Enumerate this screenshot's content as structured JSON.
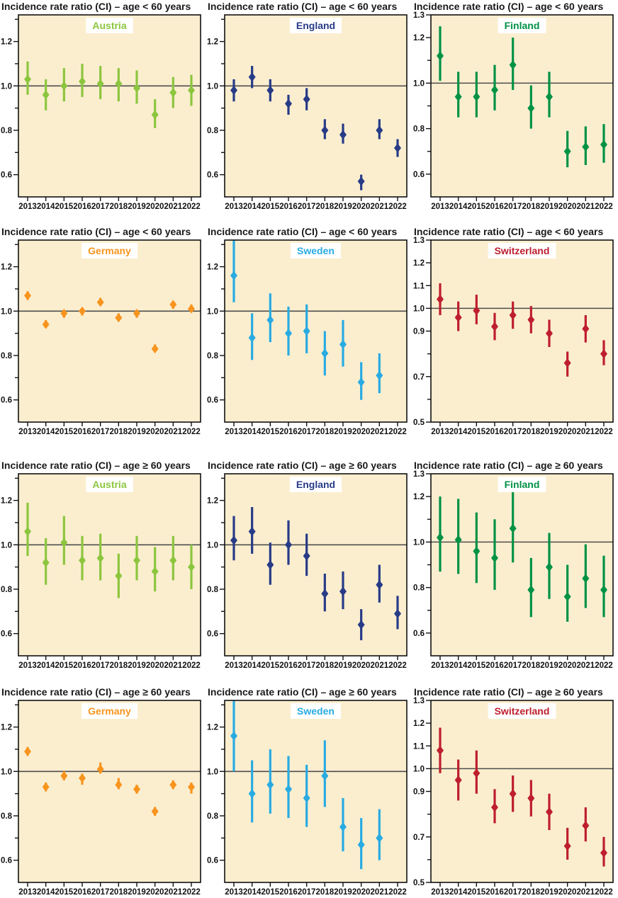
{
  "page": {
    "background": "#ffffff"
  },
  "chart_data": {
    "type": "scatter",
    "description": "Grid of 12 error-bar panels: incidence rate ratio with confidence intervals by year, per country and age group",
    "x_years": [
      2013,
      2014,
      2015,
      2016,
      2017,
      2018,
      2019,
      2020,
      2021,
      2022
    ],
    "reference_line": 1.0,
    "styles": {
      "plot_bg": "#FBEECF",
      "border_color": "#111111",
      "reference_line_color": "#4D4D4D",
      "label_box_fill": "#FFFFFF"
    },
    "panels": [
      {
        "title": "Incidence rate ratio (CI) – age < 60 years",
        "group": "age < 60 years",
        "country": "Austria",
        "color": "#8CC63E",
        "ylim": [
          0.5,
          1.32
        ],
        "yticks_labeled": [
          "1.2",
          "1.0",
          "0.8",
          "0.6"
        ],
        "points": [
          {
            "year": 2013,
            "mid": 1.03,
            "lo": 0.96,
            "hi": 1.11
          },
          {
            "year": 2014,
            "mid": 0.96,
            "lo": 0.89,
            "hi": 1.03
          },
          {
            "year": 2015,
            "mid": 1.0,
            "lo": 0.93,
            "hi": 1.08
          },
          {
            "year": 2016,
            "mid": 1.02,
            "lo": 0.95,
            "hi": 1.1
          },
          {
            "year": 2017,
            "mid": 1.01,
            "lo": 0.94,
            "hi": 1.09
          },
          {
            "year": 2018,
            "mid": 1.01,
            "lo": 0.93,
            "hi": 1.08
          },
          {
            "year": 2019,
            "mid": 0.99,
            "lo": 0.92,
            "hi": 1.07
          },
          {
            "year": 2020,
            "mid": 0.87,
            "lo": 0.81,
            "hi": 0.94
          },
          {
            "year": 2021,
            "mid": 0.97,
            "lo": 0.9,
            "hi": 1.04
          },
          {
            "year": 2022,
            "mid": 0.98,
            "lo": 0.91,
            "hi": 1.05
          }
        ]
      },
      {
        "title": "Incidence rate ratio (CI) – age < 60 years",
        "group": "age < 60 years",
        "country": "England",
        "color": "#273B87",
        "ylim": [
          0.5,
          1.32
        ],
        "yticks_labeled": [
          "1.2",
          "1.0",
          "0.8",
          "0.6"
        ],
        "points": [
          {
            "year": 2013,
            "mid": 0.98,
            "lo": 0.93,
            "hi": 1.03
          },
          {
            "year": 2014,
            "mid": 1.04,
            "lo": 0.99,
            "hi": 1.09
          },
          {
            "year": 2015,
            "mid": 0.98,
            "lo": 0.93,
            "hi": 1.03
          },
          {
            "year": 2016,
            "mid": 0.92,
            "lo": 0.87,
            "hi": 0.96
          },
          {
            "year": 2017,
            "mid": 0.94,
            "lo": 0.89,
            "hi": 0.99
          },
          {
            "year": 2018,
            "mid": 0.8,
            "lo": 0.76,
            "hi": 0.85
          },
          {
            "year": 2019,
            "mid": 0.78,
            "lo": 0.74,
            "hi": 0.83
          },
          {
            "year": 2020,
            "mid": 0.57,
            "lo": 0.53,
            "hi": 0.6
          },
          {
            "year": 2021,
            "mid": 0.8,
            "lo": 0.76,
            "hi": 0.85
          },
          {
            "year": 2022,
            "mid": 0.72,
            "lo": 0.68,
            "hi": 0.76
          }
        ]
      },
      {
        "title": "Incidence rate ratio (CI) – age < 60 years",
        "group": "age < 60 years",
        "country": "Finland",
        "color": "#009245",
        "ylim": [
          0.5,
          1.3
        ],
        "yticks_labeled": [
          "1.3",
          "1.2",
          "1.0",
          "0.8",
          "0.6"
        ],
        "points": [
          {
            "year": 2013,
            "mid": 1.12,
            "lo": 1.01,
            "hi": 1.25
          },
          {
            "year": 2014,
            "mid": 0.94,
            "lo": 0.85,
            "hi": 1.05
          },
          {
            "year": 2015,
            "mid": 0.94,
            "lo": 0.85,
            "hi": 1.05
          },
          {
            "year": 2016,
            "mid": 0.97,
            "lo": 0.88,
            "hi": 1.08
          },
          {
            "year": 2017,
            "mid": 1.08,
            "lo": 0.97,
            "hi": 1.2
          },
          {
            "year": 2018,
            "mid": 0.89,
            "lo": 0.8,
            "hi": 0.99
          },
          {
            "year": 2019,
            "mid": 0.94,
            "lo": 0.85,
            "hi": 1.05
          },
          {
            "year": 2020,
            "mid": 0.7,
            "lo": 0.63,
            "hi": 0.79
          },
          {
            "year": 2021,
            "mid": 0.72,
            "lo": 0.64,
            "hi": 0.81
          },
          {
            "year": 2022,
            "mid": 0.73,
            "lo": 0.65,
            "hi": 0.82
          }
        ]
      },
      {
        "title": "Incidence rate ratio (CI) – age < 60 years",
        "group": "age < 60 years",
        "country": "Germany",
        "color": "#F7941E",
        "ylim": [
          0.5,
          1.32
        ],
        "yticks_labeled": [
          "1.2",
          "1.0",
          "0.8",
          "0.6"
        ],
        "points": [
          {
            "year": 2013,
            "mid": 1.07,
            "lo": 1.05,
            "hi": 1.09
          },
          {
            "year": 2014,
            "mid": 0.94,
            "lo": 0.93,
            "hi": 0.96
          },
          {
            "year": 2015,
            "mid": 0.99,
            "lo": 0.97,
            "hi": 1.0
          },
          {
            "year": 2016,
            "mid": 1.0,
            "lo": 0.98,
            "hi": 1.01
          },
          {
            "year": 2017,
            "mid": 1.04,
            "lo": 1.03,
            "hi": 1.06
          },
          {
            "year": 2018,
            "mid": 0.97,
            "lo": 0.96,
            "hi": 0.99
          },
          {
            "year": 2019,
            "mid": 0.99,
            "lo": 0.97,
            "hi": 1.0
          },
          {
            "year": 2020,
            "mid": 0.83,
            "lo": 0.82,
            "hi": 0.85
          },
          {
            "year": 2021,
            "mid": 1.03,
            "lo": 1.01,
            "hi": 1.04
          },
          {
            "year": 2022,
            "mid": 1.01,
            "lo": 1.0,
            "hi": 1.03
          }
        ]
      },
      {
        "title": "Incidence rate ratio (CI) – age < 60 years",
        "group": "age < 60 years",
        "country": "Sweden",
        "color": "#29ABE2",
        "ylim": [
          0.5,
          1.32
        ],
        "yticks_labeled": [
          "1.2",
          "1.0",
          "0.8",
          "0.6"
        ],
        "points": [
          {
            "year": 2013,
            "mid": 1.16,
            "lo": 1.04,
            "hi": 1.33
          },
          {
            "year": 2014,
            "mid": 0.88,
            "lo": 0.78,
            "hi": 0.99
          },
          {
            "year": 2015,
            "mid": 0.96,
            "lo": 0.86,
            "hi": 1.08
          },
          {
            "year": 2016,
            "mid": 0.9,
            "lo": 0.8,
            "hi": 1.02
          },
          {
            "year": 2017,
            "mid": 0.91,
            "lo": 0.81,
            "hi": 1.03
          },
          {
            "year": 2018,
            "mid": 0.81,
            "lo": 0.71,
            "hi": 0.91
          },
          {
            "year": 2019,
            "mid": 0.85,
            "lo": 0.75,
            "hi": 0.96
          },
          {
            "year": 2020,
            "mid": 0.68,
            "lo": 0.6,
            "hi": 0.77
          },
          {
            "year": 2021,
            "mid": 0.71,
            "lo": 0.63,
            "hi": 0.81
          },
          {
            "year": 2022,
            "mid": null,
            "lo": null,
            "hi": null
          }
        ]
      },
      {
        "title": "Incidence rate ratio (CI) – age < 60 years",
        "group": "age < 60 years",
        "country": "Switzerland",
        "color": "#BE1E2D",
        "ylim": [
          0.5,
          1.3
        ],
        "yticks_labeled": [
          "1.3",
          "1.2",
          "1.1",
          "1.0",
          "0.9",
          "0.7",
          "0.5"
        ],
        "points": [
          {
            "year": 2013,
            "mid": 1.04,
            "lo": 0.97,
            "hi": 1.11
          },
          {
            "year": 2014,
            "mid": 0.96,
            "lo": 0.9,
            "hi": 1.03
          },
          {
            "year": 2015,
            "mid": 0.99,
            "lo": 0.93,
            "hi": 1.06
          },
          {
            "year": 2016,
            "mid": 0.92,
            "lo": 0.86,
            "hi": 0.98
          },
          {
            "year": 2017,
            "mid": 0.97,
            "lo": 0.91,
            "hi": 1.03
          },
          {
            "year": 2018,
            "mid": 0.95,
            "lo": 0.89,
            "hi": 1.01
          },
          {
            "year": 2019,
            "mid": 0.89,
            "lo": 0.83,
            "hi": 0.95
          },
          {
            "year": 2020,
            "mid": 0.76,
            "lo": 0.7,
            "hi": 0.81
          },
          {
            "year": 2021,
            "mid": 0.91,
            "lo": 0.85,
            "hi": 0.97
          },
          {
            "year": 2022,
            "mid": 0.8,
            "lo": 0.75,
            "hi": 0.86
          }
        ]
      },
      {
        "title": "Incidence rate ratio (CI) – age ≥ 60 years",
        "group": "age ≥ 60 years",
        "country": "Austria",
        "color": "#8CC63E",
        "ylim": [
          0.5,
          1.32
        ],
        "yticks_labeled": [
          "1.2",
          "1.0",
          "0.8",
          "0.6"
        ],
        "points": [
          {
            "year": 2013,
            "mid": 1.06,
            "lo": 0.95,
            "hi": 1.19
          },
          {
            "year": 2014,
            "mid": 0.92,
            "lo": 0.82,
            "hi": 1.03
          },
          {
            "year": 2015,
            "mid": 1.01,
            "lo": 0.91,
            "hi": 1.13
          },
          {
            "year": 2016,
            "mid": 0.93,
            "lo": 0.84,
            "hi": 1.04
          },
          {
            "year": 2017,
            "mid": 0.94,
            "lo": 0.84,
            "hi": 1.05
          },
          {
            "year": 2018,
            "mid": 0.86,
            "lo": 0.76,
            "hi": 0.96
          },
          {
            "year": 2019,
            "mid": 0.93,
            "lo": 0.84,
            "hi": 1.04
          },
          {
            "year": 2020,
            "mid": 0.88,
            "lo": 0.79,
            "hi": 0.99
          },
          {
            "year": 2021,
            "mid": 0.93,
            "lo": 0.84,
            "hi": 1.04
          },
          {
            "year": 2022,
            "mid": 0.9,
            "lo": 0.8,
            "hi": 1.0
          }
        ]
      },
      {
        "title": "Incidence rate ratio (CI) – age ≥ 60 years",
        "group": "age ≥ 60 years",
        "country": "England",
        "color": "#273B87",
        "ylim": [
          0.5,
          1.32
        ],
        "yticks_labeled": [
          "1.2",
          "1.0",
          "0.8",
          "0.6"
        ],
        "points": [
          {
            "year": 2013,
            "mid": 1.02,
            "lo": 0.93,
            "hi": 1.13
          },
          {
            "year": 2014,
            "mid": 1.06,
            "lo": 0.96,
            "hi": 1.17
          },
          {
            "year": 2015,
            "mid": 0.91,
            "lo": 0.82,
            "hi": 1.01
          },
          {
            "year": 2016,
            "mid": 1.0,
            "lo": 0.91,
            "hi": 1.11
          },
          {
            "year": 2017,
            "mid": 0.95,
            "lo": 0.86,
            "hi": 1.05
          },
          {
            "year": 2018,
            "mid": 0.78,
            "lo": 0.7,
            "hi": 0.87
          },
          {
            "year": 2019,
            "mid": 0.79,
            "lo": 0.71,
            "hi": 0.88
          },
          {
            "year": 2020,
            "mid": 0.64,
            "lo": 0.57,
            "hi": 0.71
          },
          {
            "year": 2021,
            "mid": 0.82,
            "lo": 0.74,
            "hi": 0.91
          },
          {
            "year": 2022,
            "mid": 0.69,
            "lo": 0.62,
            "hi": 0.77
          }
        ]
      },
      {
        "title": "Incidence rate ratio (CI) – age ≥ 60 years",
        "group": "age ≥ 60 years",
        "country": "Finland",
        "color": "#009245",
        "ylim": [
          0.5,
          1.3
        ],
        "yticks_labeled": [
          "1.3",
          "1.2",
          "1.0",
          "0.8",
          "0.6"
        ],
        "points": [
          {
            "year": 2013,
            "mid": 1.02,
            "lo": 0.87,
            "hi": 1.2
          },
          {
            "year": 2014,
            "mid": 1.01,
            "lo": 0.86,
            "hi": 1.19
          },
          {
            "year": 2015,
            "mid": 0.96,
            "lo": 0.82,
            "hi": 1.13
          },
          {
            "year": 2016,
            "mid": 0.93,
            "lo": 0.79,
            "hi": 1.1
          },
          {
            "year": 2017,
            "mid": 1.06,
            "lo": 0.91,
            "hi": 1.24
          },
          {
            "year": 2018,
            "mid": 0.79,
            "lo": 0.67,
            "hi": 0.93
          },
          {
            "year": 2019,
            "mid": 0.89,
            "lo": 0.75,
            "hi": 1.04
          },
          {
            "year": 2020,
            "mid": 0.76,
            "lo": 0.65,
            "hi": 0.9
          },
          {
            "year": 2021,
            "mid": 0.84,
            "lo": 0.71,
            "hi": 0.99
          },
          {
            "year": 2022,
            "mid": 0.79,
            "lo": 0.67,
            "hi": 0.94
          }
        ]
      },
      {
        "title": "Incidence rate ratio (CI) – age ≥ 60 years",
        "group": "age ≥ 60 years",
        "country": "Germany",
        "color": "#F7941E",
        "ylim": [
          0.5,
          1.32
        ],
        "yticks_labeled": [
          "1.2",
          "1.0",
          "0.8",
          "0.6"
        ],
        "points": [
          {
            "year": 2013,
            "mid": 1.09,
            "lo": 1.07,
            "hi": 1.11
          },
          {
            "year": 2014,
            "mid": 0.93,
            "lo": 0.91,
            "hi": 0.95
          },
          {
            "year": 2015,
            "mid": 0.98,
            "lo": 0.96,
            "hi": 1.0
          },
          {
            "year": 2016,
            "mid": 0.97,
            "lo": 0.94,
            "hi": 0.99
          },
          {
            "year": 2017,
            "mid": 1.01,
            "lo": 0.99,
            "hi": 1.04
          },
          {
            "year": 2018,
            "mid": 0.94,
            "lo": 0.92,
            "hi": 0.97
          },
          {
            "year": 2019,
            "mid": 0.92,
            "lo": 0.9,
            "hi": 0.94
          },
          {
            "year": 2020,
            "mid": 0.82,
            "lo": 0.8,
            "hi": 0.84
          },
          {
            "year": 2021,
            "mid": 0.94,
            "lo": 0.92,
            "hi": 0.96
          },
          {
            "year": 2022,
            "mid": 0.93,
            "lo": 0.9,
            "hi": 0.95
          }
        ]
      },
      {
        "title": "Incidence rate ratio (CI) – age ≥ 60 years",
        "group": "age ≥ 60 years",
        "country": "Sweden",
        "color": "#29ABE2",
        "ylim": [
          0.5,
          1.32
        ],
        "yticks_labeled": [
          "1.2",
          "1.0",
          "0.8",
          "0.6"
        ],
        "points": [
          {
            "year": 2013,
            "mid": 1.16,
            "lo": 1.0,
            "hi": 1.33
          },
          {
            "year": 2014,
            "mid": 0.9,
            "lo": 0.77,
            "hi": 1.05
          },
          {
            "year": 2015,
            "mid": 0.94,
            "lo": 0.81,
            "hi": 1.1
          },
          {
            "year": 2016,
            "mid": 0.92,
            "lo": 0.79,
            "hi": 1.07
          },
          {
            "year": 2017,
            "mid": 0.88,
            "lo": 0.75,
            "hi": 1.03
          },
          {
            "year": 2018,
            "mid": 0.98,
            "lo": 0.84,
            "hi": 1.14
          },
          {
            "year": 2019,
            "mid": 0.75,
            "lo": 0.64,
            "hi": 0.88
          },
          {
            "year": 2020,
            "mid": 0.67,
            "lo": 0.56,
            "hi": 0.79
          },
          {
            "year": 2021,
            "mid": 0.7,
            "lo": 0.6,
            "hi": 0.83
          },
          {
            "year": 2022,
            "mid": null,
            "lo": null,
            "hi": null
          }
        ]
      },
      {
        "title": "Incidence rate ratio (CI) – age ≥ 60 years",
        "group": "age ≥ 60 years",
        "country": "Switzerland",
        "color": "#BE1E2D",
        "ylim": [
          0.5,
          1.3
        ],
        "yticks_labeled": [
          "1.3",
          "1.2",
          "1.1",
          "1.0",
          "0.9",
          "0.7",
          "0.5"
        ],
        "points": [
          {
            "year": 2013,
            "mid": 1.08,
            "lo": 0.98,
            "hi": 1.18
          },
          {
            "year": 2014,
            "mid": 0.95,
            "lo": 0.86,
            "hi": 1.04
          },
          {
            "year": 2015,
            "mid": 0.98,
            "lo": 0.89,
            "hi": 1.08
          },
          {
            "year": 2016,
            "mid": 0.83,
            "lo": 0.76,
            "hi": 0.91
          },
          {
            "year": 2017,
            "mid": 0.89,
            "lo": 0.81,
            "hi": 0.97
          },
          {
            "year": 2018,
            "mid": 0.87,
            "lo": 0.79,
            "hi": 0.95
          },
          {
            "year": 2019,
            "mid": 0.81,
            "lo": 0.73,
            "hi": 0.89
          },
          {
            "year": 2020,
            "mid": 0.66,
            "lo": 0.6,
            "hi": 0.74
          },
          {
            "year": 2021,
            "mid": 0.75,
            "lo": 0.68,
            "hi": 0.83
          },
          {
            "year": 2022,
            "mid": 0.63,
            "lo": 0.57,
            "hi": 0.7
          }
        ]
      }
    ]
  }
}
